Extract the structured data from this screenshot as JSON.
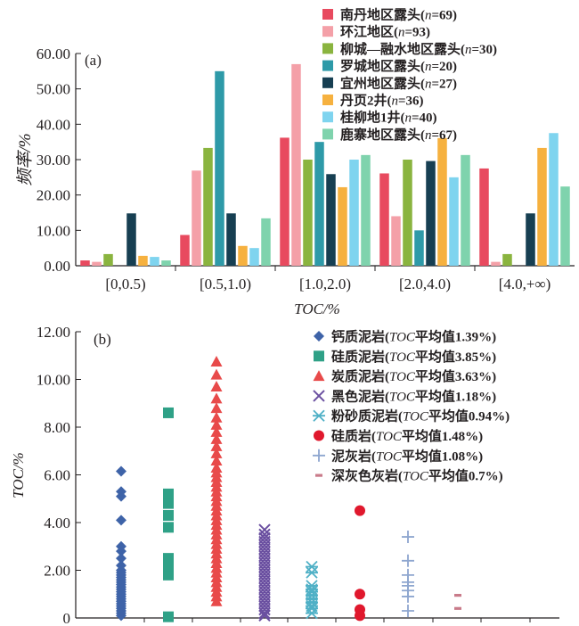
{
  "chart_data": [
    {
      "type": "bar",
      "panel": "(a)",
      "ylabel": "频率/%",
      "xlabel": "TOC/%",
      "ylim": [
        0,
        60
      ],
      "yticks": [
        "0.00",
        "10.00",
        "20.00",
        "30.00",
        "40.00",
        "50.00",
        "60.00"
      ],
      "categories": [
        "[0,0.5)",
        "[0.5,1.0)",
        "[1.0,2.0)",
        "[2.0,4.0)",
        "[4.0,+∞)"
      ],
      "legend_position": "top-right",
      "series": [
        {
          "name": "南丹地区露头(n=69)",
          "color": "#e84a5f",
          "values": [
            1.5,
            8.7,
            36.2,
            26.1,
            27.5
          ]
        },
        {
          "name": "环江地区(n=93)",
          "color": "#f4a0a8",
          "values": [
            1.1,
            26.9,
            57.0,
            14.0,
            1.1
          ]
        },
        {
          "name": "柳城—融水地区露头(n=30)",
          "color": "#8ab43f",
          "values": [
            3.3,
            33.3,
            30.0,
            30.0,
            3.3
          ]
        },
        {
          "name": "罗城地区露头(n=20)",
          "color": "#2e9aa8",
          "values": [
            0,
            55.0,
            35.0,
            10.0,
            0
          ]
        },
        {
          "name": "宜州地区露头(n=27)",
          "color": "#173f52",
          "values": [
            14.8,
            14.8,
            25.9,
            29.6,
            14.8
          ]
        },
        {
          "name": "丹页2井(n=36)",
          "color": "#f6b13f",
          "values": [
            2.8,
            5.6,
            22.2,
            36.1,
            33.3
          ]
        },
        {
          "name": "桂柳地1井(n=40)",
          "color": "#7fd4ef",
          "values": [
            2.5,
            5.0,
            30.0,
            25.0,
            37.5
          ]
        },
        {
          "name": "鹿寨地区露头(n=67)",
          "color": "#7fd3ad",
          "values": [
            1.5,
            13.4,
            31.3,
            31.3,
            22.4
          ]
        }
      ],
      "legend_labels": [
        [
          "南丹地区露头(",
          "n",
          "=69)"
        ],
        [
          "环江地区(",
          "n",
          "=93)"
        ],
        [
          "柳城—融水地区露头(",
          "n",
          "=30)"
        ],
        [
          "罗城地区露头(",
          "n",
          "=20)"
        ],
        [
          "宜州地区露头(",
          "n",
          "=27)"
        ],
        [
          "丹页2井(",
          "n",
          "=36)"
        ],
        [
          "桂柳地1井(",
          "n",
          "=40)"
        ],
        [
          "鹿寨地区露头(",
          "n",
          "=67)"
        ]
      ]
    },
    {
      "type": "scatter",
      "panel": "(b)",
      "ylabel": "TOC/%",
      "ylim": [
        0,
        12
      ],
      "yticks": [
        "0",
        "2.00",
        "4.00",
        "6.00",
        "8.00",
        "10.00",
        "12.00"
      ],
      "legend_position": "top-right",
      "series": [
        {
          "name": "钙质泥岩(TOC平均值1.39%)",
          "marker": "diamond",
          "color": "#3e63a8",
          "values": [
            0.1,
            0.2,
            0.3,
            0.4,
            0.5,
            0.6,
            0.7,
            0.8,
            0.9,
            1.0,
            1.1,
            1.2,
            1.3,
            1.4,
            1.5,
            1.6,
            1.7,
            1.8,
            1.9,
            2.0,
            2.2,
            2.5,
            2.8,
            3.0,
            4.1,
            5.1,
            5.3,
            6.15
          ]
        },
        {
          "name": "硅质泥岩(TOC平均值3.85%)",
          "marker": "square",
          "color": "#2fa187",
          "values": [
            0.05,
            1.8,
            2.2,
            2.5,
            3.8,
            4.3,
            4.8,
            5.2,
            8.6
          ]
        },
        {
          "name": "炭质泥岩(TOC平均值3.63%)",
          "marker": "triangle",
          "color": "#e84a4a",
          "values": [
            0.7,
            0.9,
            1.1,
            1.3,
            1.5,
            1.7,
            1.9,
            2.1,
            2.3,
            2.5,
            2.7,
            2.9,
            3.1,
            3.3,
            3.5,
            3.7,
            3.9,
            4.1,
            4.3,
            4.5,
            4.7,
            4.9,
            5.1,
            5.3,
            5.5,
            5.7,
            5.9,
            6.1,
            6.3,
            6.6,
            6.9,
            7.2,
            7.5,
            7.8,
            8.1,
            8.4,
            8.8,
            9.2,
            9.7,
            10.2,
            10.75
          ]
        },
        {
          "name": "黑色泥岩(TOC平均值1.18%)",
          "marker": "x",
          "color": "#6a4fa0",
          "values": [
            0.1,
            0.2,
            0.35,
            0.5,
            0.65,
            0.8,
            0.95,
            1.1,
            1.25,
            1.4,
            1.55,
            1.7,
            1.85,
            2.0,
            2.15,
            2.3,
            2.45,
            2.6,
            2.75,
            2.9,
            3.05,
            3.2,
            3.35,
            3.5,
            3.7
          ]
        },
        {
          "name": "粉砂质泥岩(TOC平均值0.94%)",
          "marker": "asterisk",
          "color": "#4fb0c6",
          "values": [
            0.2,
            0.4,
            0.5,
            0.65,
            0.8,
            0.95,
            1.1,
            1.2,
            1.35,
            1.9,
            2.15
          ]
        },
        {
          "name": "硅质岩(TOC平均值1.48%)",
          "marker": "circle",
          "color": "#e0182d",
          "values": [
            0.1,
            0.35,
            1.0,
            4.5
          ]
        },
        {
          "name": "泥灰岩(TOC平均值1.08%)",
          "marker": "plus",
          "color": "#8ea6cf",
          "values": [
            0.3,
            0.9,
            1.15,
            1.35,
            1.5,
            1.8,
            2.4,
            3.4
          ]
        },
        {
          "name": "深灰色灰岩(TOC平均值0.7%)",
          "marker": "dash",
          "color": "#c97b8a",
          "values": [
            0.4,
            0.95
          ]
        }
      ],
      "legend_labels": [
        [
          "钙质泥岩(",
          "TOC",
          "平均值1.39%)"
        ],
        [
          "硅质泥岩(",
          "TOC",
          "平均值3.85%)"
        ],
        [
          "炭质泥岩(",
          "TOC",
          "平均值3.63%)"
        ],
        [
          "黑色泥岩(",
          "TOC",
          "平均值1.18%)"
        ],
        [
          "粉砂质泥岩(",
          "TOC",
          "平均值0.94%)"
        ],
        [
          "硅质岩(",
          "TOC",
          "平均值1.48%)"
        ],
        [
          "泥灰岩(",
          "TOC",
          "平均值1.08%)"
        ],
        [
          "深灰色灰岩(",
          "TOC",
          "平均值0.7%)"
        ]
      ]
    }
  ]
}
